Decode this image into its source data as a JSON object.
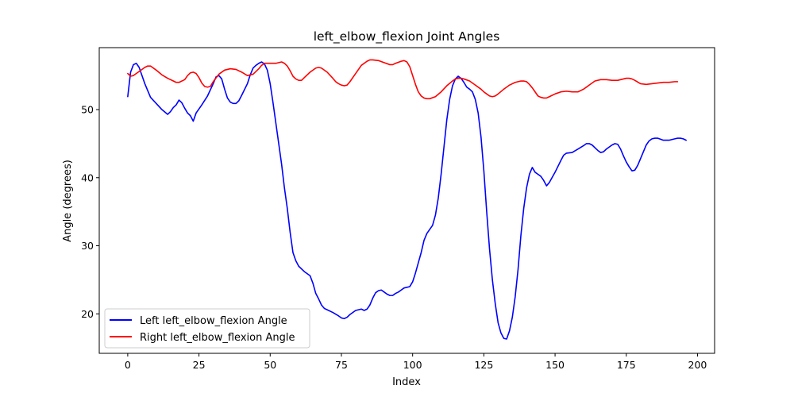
{
  "chart_data": {
    "type": "line",
    "title": "left_elbow_flexion Joint Angles",
    "xlabel": "Index",
    "ylabel": "Angle (degrees)",
    "xlim": [
      -10,
      206
    ],
    "ylim": [
      14.2,
      59.1
    ],
    "xticks": [
      0,
      25,
      50,
      75,
      100,
      125,
      150,
      175,
      200
    ],
    "yticks": [
      20,
      30,
      40,
      50
    ],
    "grid": false,
    "legend_position": "lower-left",
    "series": [
      {
        "name": "Left left_elbow_flexion Angle",
        "color": "#0000ff",
        "points": [
          [
            0,
            51.9
          ],
          [
            1,
            55.5
          ],
          [
            2,
            56.6
          ],
          [
            3,
            56.8
          ],
          [
            4,
            56.2
          ],
          [
            5,
            55.0
          ],
          [
            6,
            53.8
          ],
          [
            7,
            52.8
          ],
          [
            8,
            51.8
          ],
          [
            10,
            50.9
          ],
          [
            12,
            50.0
          ],
          [
            14,
            49.3
          ],
          [
            15,
            49.7
          ],
          [
            16,
            50.3
          ],
          [
            17,
            50.7
          ],
          [
            18,
            51.4
          ],
          [
            19,
            51.0
          ],
          [
            20,
            50.2
          ],
          [
            21,
            49.5
          ],
          [
            22,
            49.1
          ],
          [
            23,
            48.3
          ],
          [
            24,
            49.5
          ],
          [
            26,
            50.7
          ],
          [
            28,
            52.0
          ],
          [
            30,
            53.8
          ],
          [
            31,
            54.8
          ],
          [
            32,
            55.0
          ],
          [
            33,
            54.5
          ],
          [
            34,
            53.0
          ],
          [
            35,
            51.7
          ],
          [
            36,
            51.1
          ],
          [
            37,
            50.9
          ],
          [
            38,
            50.9
          ],
          [
            39,
            51.3
          ],
          [
            40,
            52.1
          ],
          [
            42,
            53.8
          ],
          [
            43,
            55.1
          ],
          [
            44,
            56.1
          ],
          [
            45,
            56.5
          ],
          [
            46,
            56.8
          ],
          [
            47,
            57.0
          ],
          [
            48,
            56.7
          ],
          [
            49,
            55.8
          ],
          [
            50,
            53.8
          ],
          [
            51,
            51.0
          ],
          [
            52,
            48.0
          ],
          [
            53,
            45.0
          ],
          [
            54,
            42.0
          ],
          [
            55,
            38.5
          ],
          [
            56,
            35.5
          ],
          [
            57,
            32.0
          ],
          [
            58,
            29.0
          ],
          [
            59,
            27.8
          ],
          [
            60,
            27.0
          ],
          [
            62,
            26.2
          ],
          [
            64,
            25.6
          ],
          [
            65,
            24.5
          ],
          [
            66,
            23.0
          ],
          [
            67,
            22.2
          ],
          [
            68,
            21.3
          ],
          [
            69,
            20.8
          ],
          [
            70,
            20.6
          ],
          [
            72,
            20.2
          ],
          [
            74,
            19.7
          ],
          [
            75,
            19.4
          ],
          [
            76,
            19.3
          ],
          [
            77,
            19.5
          ],
          [
            78,
            19.9
          ],
          [
            80,
            20.5
          ],
          [
            82,
            20.7
          ],
          [
            83,
            20.5
          ],
          [
            84,
            20.7
          ],
          [
            85,
            21.3
          ],
          [
            86,
            22.3
          ],
          [
            87,
            23.1
          ],
          [
            88,
            23.4
          ],
          [
            89,
            23.5
          ],
          [
            90,
            23.2
          ],
          [
            91,
            22.9
          ],
          [
            92,
            22.7
          ],
          [
            93,
            22.7
          ],
          [
            94,
            23.0
          ],
          [
            95,
            23.2
          ],
          [
            96,
            23.5
          ],
          [
            97,
            23.8
          ],
          [
            99,
            24.0
          ],
          [
            100,
            24.7
          ],
          [
            101,
            26.0
          ],
          [
            102,
            27.5
          ],
          [
            103,
            29.0
          ],
          [
            104,
            30.8
          ],
          [
            105,
            31.8
          ],
          [
            106,
            32.4
          ],
          [
            107,
            33.0
          ],
          [
            108,
            34.5
          ],
          [
            109,
            37.0
          ],
          [
            110,
            40.5
          ],
          [
            111,
            44.5
          ],
          [
            112,
            48.5
          ],
          [
            113,
            51.5
          ],
          [
            114,
            53.5
          ],
          [
            115,
            54.5
          ],
          [
            116,
            54.9
          ],
          [
            117,
            54.6
          ],
          [
            118,
            54.0
          ],
          [
            119,
            53.3
          ],
          [
            120,
            53.0
          ],
          [
            121,
            52.6
          ],
          [
            122,
            51.5
          ],
          [
            123,
            49.5
          ],
          [
            124,
            46.0
          ],
          [
            125,
            41.0
          ],
          [
            126,
            35.0
          ],
          [
            127,
            29.5
          ],
          [
            128,
            25.0
          ],
          [
            129,
            21.5
          ],
          [
            130,
            18.7
          ],
          [
            131,
            17.2
          ],
          [
            132,
            16.4
          ],
          [
            133,
            16.3
          ],
          [
            134,
            17.5
          ],
          [
            135,
            19.5
          ],
          [
            136,
            22.5
          ],
          [
            137,
            26.5
          ],
          [
            138,
            31.5
          ],
          [
            139,
            35.5
          ],
          [
            140,
            38.5
          ],
          [
            141,
            40.5
          ],
          [
            142,
            41.5
          ],
          [
            143,
            40.8
          ],
          [
            144,
            40.5
          ],
          [
            145,
            40.2
          ],
          [
            146,
            39.6
          ],
          [
            147,
            38.8
          ],
          [
            148,
            39.3
          ],
          [
            150,
            40.8
          ],
          [
            152,
            42.5
          ],
          [
            153,
            43.3
          ],
          [
            154,
            43.6
          ],
          [
            156,
            43.7
          ],
          [
            158,
            44.2
          ],
          [
            160,
            44.7
          ],
          [
            161,
            45.0
          ],
          [
            162,
            45.0
          ],
          [
            163,
            44.8
          ],
          [
            165,
            44.0
          ],
          [
            166,
            43.7
          ],
          [
            167,
            43.8
          ],
          [
            168,
            44.2
          ],
          [
            170,
            44.8
          ],
          [
            171,
            45.0
          ],
          [
            172,
            44.9
          ],
          [
            173,
            44.2
          ],
          [
            174,
            43.2
          ],
          [
            175,
            42.3
          ],
          [
            176,
            41.6
          ],
          [
            177,
            41.0
          ],
          [
            178,
            41.1
          ],
          [
            179,
            41.8
          ],
          [
            180,
            42.8
          ],
          [
            181,
            43.8
          ],
          [
            182,
            44.8
          ],
          [
            183,
            45.4
          ],
          [
            184,
            45.7
          ],
          [
            185,
            45.8
          ],
          [
            186,
            45.8
          ],
          [
            188,
            45.5
          ],
          [
            190,
            45.5
          ],
          [
            192,
            45.7
          ],
          [
            193,
            45.8
          ],
          [
            194,
            45.8
          ],
          [
            195,
            45.7
          ],
          [
            196,
            45.5
          ]
        ]
      },
      {
        "name": "Right left_elbow_flexion Angle",
        "color": "#ff0000",
        "points": [
          [
            0,
            55.3
          ],
          [
            1,
            54.9
          ],
          [
            2,
            55.0
          ],
          [
            4,
            55.6
          ],
          [
            6,
            56.2
          ],
          [
            7,
            56.4
          ],
          [
            8,
            56.4
          ],
          [
            10,
            55.8
          ],
          [
            12,
            55.1
          ],
          [
            14,
            54.6
          ],
          [
            16,
            54.2
          ],
          [
            17,
            54.0
          ],
          [
            18,
            54.0
          ],
          [
            20,
            54.4
          ],
          [
            21,
            55.0
          ],
          [
            22,
            55.4
          ],
          [
            23,
            55.5
          ],
          [
            24,
            55.3
          ],
          [
            25,
            54.7
          ],
          [
            26,
            53.9
          ],
          [
            27,
            53.4
          ],
          [
            28,
            53.3
          ],
          [
            29,
            53.4
          ],
          [
            30,
            54.1
          ],
          [
            32,
            55.2
          ],
          [
            34,
            55.8
          ],
          [
            36,
            56.0
          ],
          [
            38,
            55.9
          ],
          [
            40,
            55.5
          ],
          [
            42,
            55.0
          ],
          [
            44,
            55.2
          ],
          [
            46,
            56.0
          ],
          [
            47,
            56.5
          ],
          [
            48,
            56.8
          ],
          [
            52,
            56.8
          ],
          [
            54,
            57.0
          ],
          [
            55,
            56.8
          ],
          [
            56,
            56.4
          ],
          [
            57,
            55.7
          ],
          [
            58,
            54.9
          ],
          [
            59,
            54.5
          ],
          [
            60,
            54.3
          ],
          [
            61,
            54.3
          ],
          [
            62,
            54.7
          ],
          [
            64,
            55.5
          ],
          [
            66,
            56.1
          ],
          [
            67,
            56.2
          ],
          [
            68,
            56.1
          ],
          [
            70,
            55.5
          ],
          [
            72,
            54.6
          ],
          [
            73,
            54.1
          ],
          [
            74,
            53.8
          ],
          [
            75,
            53.6
          ],
          [
            76,
            53.5
          ],
          [
            77,
            53.6
          ],
          [
            78,
            54.1
          ],
          [
            80,
            55.3
          ],
          [
            82,
            56.5
          ],
          [
            84,
            57.1
          ],
          [
            85,
            57.3
          ],
          [
            86,
            57.3
          ],
          [
            88,
            57.2
          ],
          [
            90,
            56.9
          ],
          [
            92,
            56.6
          ],
          [
            93,
            56.6
          ],
          [
            94,
            56.8
          ],
          [
            96,
            57.1
          ],
          [
            97,
            57.2
          ],
          [
            98,
            57.0
          ],
          [
            99,
            56.3
          ],
          [
            100,
            55.0
          ],
          [
            101,
            53.7
          ],
          [
            102,
            52.6
          ],
          [
            103,
            52.0
          ],
          [
            104,
            51.7
          ],
          [
            105,
            51.6
          ],
          [
            106,
            51.6
          ],
          [
            108,
            51.9
          ],
          [
            110,
            52.6
          ],
          [
            112,
            53.5
          ],
          [
            114,
            54.2
          ],
          [
            115,
            54.5
          ],
          [
            116,
            54.6
          ],
          [
            117,
            54.6
          ],
          [
            118,
            54.5
          ],
          [
            120,
            54.2
          ],
          [
            122,
            53.6
          ],
          [
            124,
            53.0
          ],
          [
            125,
            52.6
          ],
          [
            126,
            52.3
          ],
          [
            127,
            52.0
          ],
          [
            128,
            51.9
          ],
          [
            129,
            52.0
          ],
          [
            130,
            52.3
          ],
          [
            132,
            53.0
          ],
          [
            134,
            53.6
          ],
          [
            136,
            54.0
          ],
          [
            138,
            54.2
          ],
          [
            139,
            54.2
          ],
          [
            140,
            54.1
          ],
          [
            141,
            53.7
          ],
          [
            142,
            53.2
          ],
          [
            143,
            52.6
          ],
          [
            144,
            52.0
          ],
          [
            145,
            51.8
          ],
          [
            146,
            51.7
          ],
          [
            147,
            51.7
          ],
          [
            148,
            51.9
          ],
          [
            150,
            52.3
          ],
          [
            152,
            52.6
          ],
          [
            154,
            52.7
          ],
          [
            156,
            52.6
          ],
          [
            158,
            52.6
          ],
          [
            160,
            53.0
          ],
          [
            162,
            53.6
          ],
          [
            164,
            54.2
          ],
          [
            166,
            54.4
          ],
          [
            168,
            54.4
          ],
          [
            170,
            54.3
          ],
          [
            172,
            54.3
          ],
          [
            174,
            54.5
          ],
          [
            175,
            54.6
          ],
          [
            176,
            54.6
          ],
          [
            177,
            54.5
          ],
          [
            178,
            54.3
          ],
          [
            180,
            53.8
          ],
          [
            182,
            53.7
          ],
          [
            184,
            53.8
          ],
          [
            186,
            53.9
          ],
          [
            188,
            54.0
          ],
          [
            190,
            54.0
          ],
          [
            192,
            54.1
          ],
          [
            193,
            54.1
          ]
        ]
      }
    ]
  }
}
